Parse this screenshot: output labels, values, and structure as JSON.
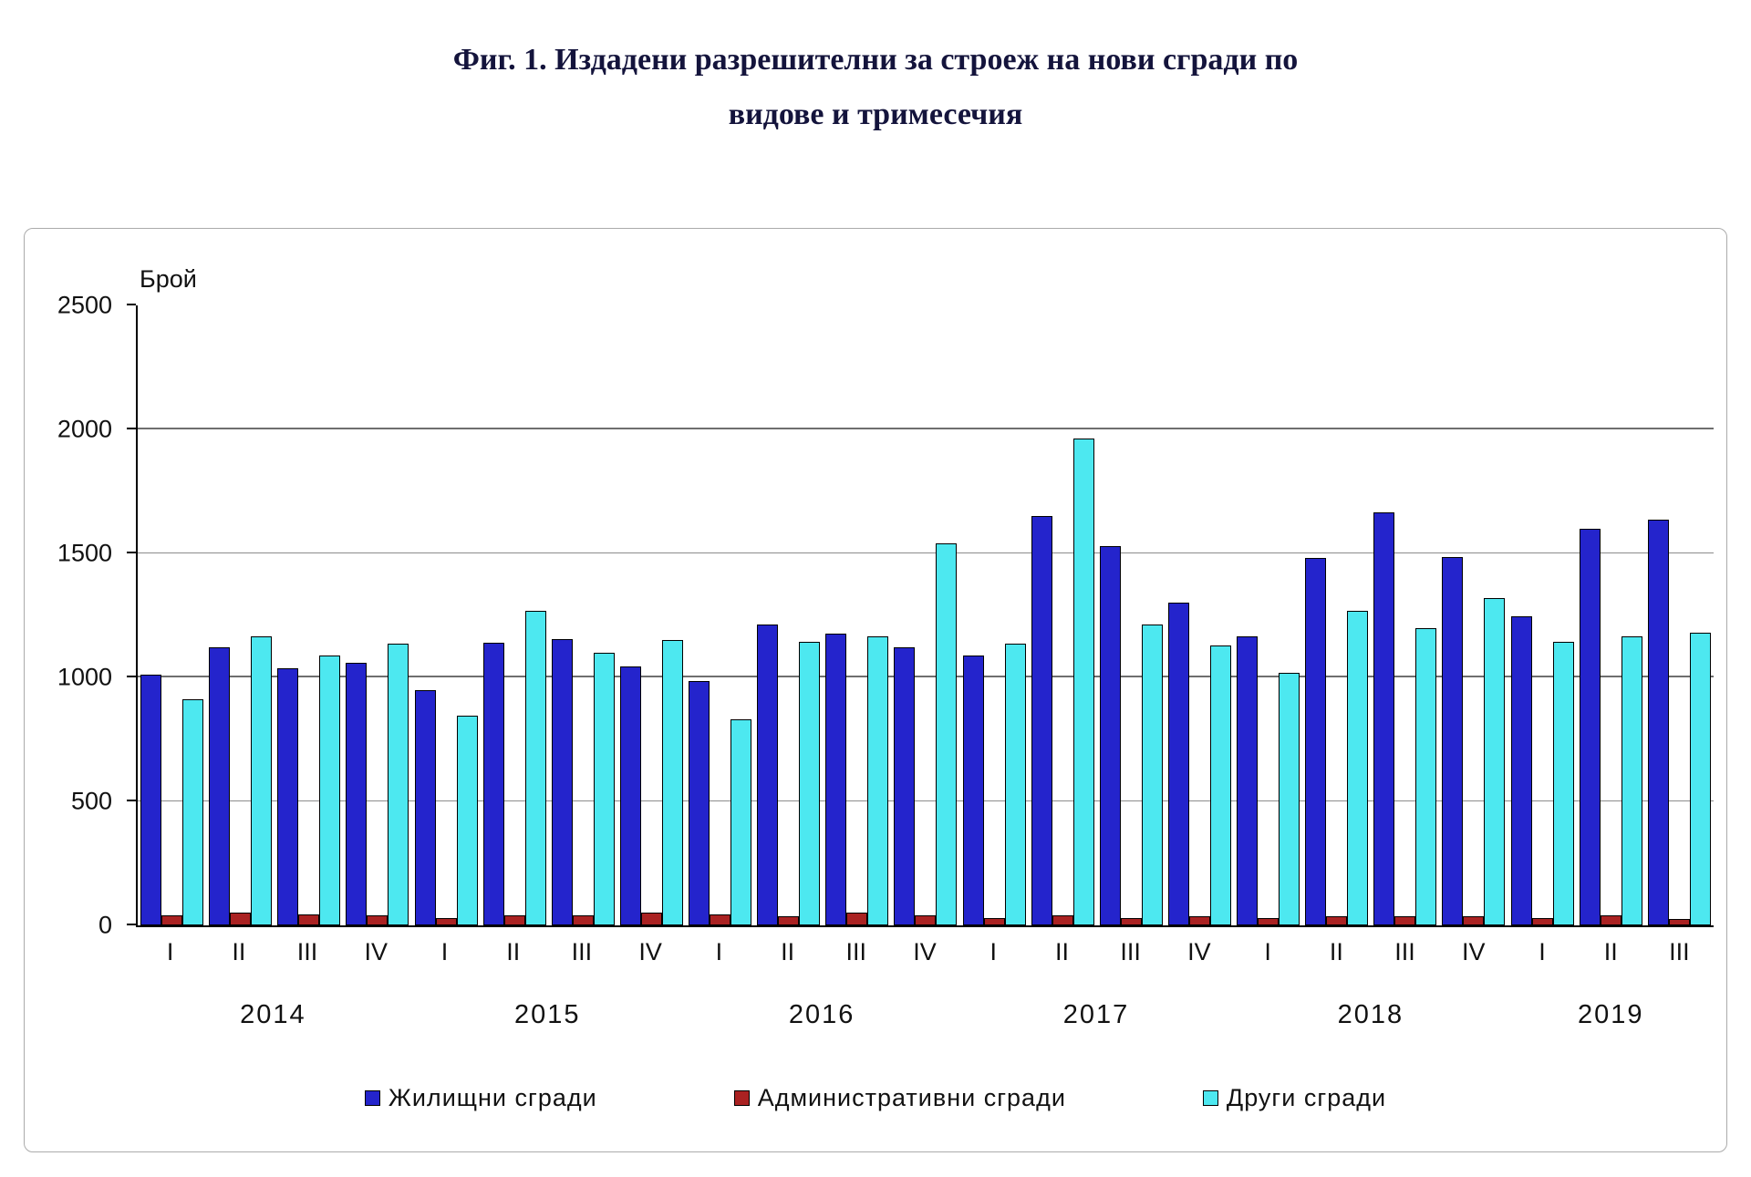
{
  "title": {
    "line1": "Фиг. 1. Издадени разрешителни за строеж на нови сгради по",
    "line2": "видове и тримесечия"
  },
  "chart_data": {
    "type": "bar",
    "title": "Фиг. 1. Издадени разрешителни за строеж на нови сгради по видове и тримесечия",
    "ylabel": "Брой",
    "xlabel": "",
    "ylim": [
      0,
      2500
    ],
    "yticks": [
      0,
      500,
      1000,
      1500,
      2000,
      2500
    ],
    "grid": true,
    "legend_position": "bottom",
    "years": [
      {
        "label": "2014",
        "quarters": [
          "I",
          "II",
          "III",
          "IV"
        ]
      },
      {
        "label": "2015",
        "quarters": [
          "I",
          "II",
          "III",
          "IV"
        ]
      },
      {
        "label": "2016",
        "quarters": [
          "I",
          "II",
          "III",
          "IV"
        ]
      },
      {
        "label": "2017",
        "quarters": [
          "I",
          "II",
          "III",
          "IV"
        ]
      },
      {
        "label": "2018",
        "quarters": [
          "I",
          "II",
          "III",
          "IV"
        ]
      },
      {
        "label": "2019",
        "quarters": [
          "I",
          "II",
          "III"
        ]
      }
    ],
    "categories": [
      "2014 I",
      "2014 II",
      "2014 III",
      "2014 IV",
      "2015 I",
      "2015 II",
      "2015 III",
      "2015 IV",
      "2016 I",
      "2016 II",
      "2016 III",
      "2016 IV",
      "2017 I",
      "2017 II",
      "2017 III",
      "2017 IV",
      "2018 I",
      "2018 II",
      "2018 III",
      "2018 IV",
      "2019 I",
      "2019 II",
      "2019 III"
    ],
    "series": [
      {
        "key": "residential",
        "name": "Жилищни сгради",
        "color": "#2424cc",
        "values": [
          1010,
          1120,
          1035,
          1060,
          950,
          1140,
          1155,
          1045,
          985,
          1215,
          1175,
          1120,
          1090,
          1650,
          1530,
          1300,
          1165,
          1480,
          1665,
          1485,
          1245,
          1600,
          1635
        ]
      },
      {
        "key": "administrative",
        "name": "Административни сгради",
        "color": "#aa2222",
        "values": [
          40,
          50,
          45,
          40,
          30,
          40,
          40,
          50,
          45,
          35,
          50,
          40,
          30,
          40,
          30,
          35,
          30,
          35,
          35,
          35,
          30,
          40,
          25
        ]
      },
      {
        "key": "other",
        "name": "Други сгради",
        "color": "#4de8f0",
        "values": [
          910,
          1165,
          1090,
          1135,
          845,
          1270,
          1100,
          1150,
          830,
          1145,
          1165,
          1540,
          1135,
          1965,
          1215,
          1130,
          1020,
          1270,
          1200,
          1320,
          1145,
          1165,
          1180
        ]
      }
    ]
  }
}
